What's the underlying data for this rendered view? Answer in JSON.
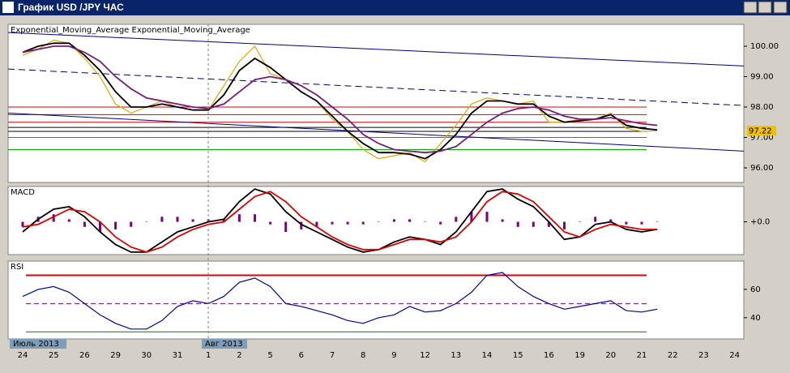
{
  "window": {
    "title": "График USD /JPY ЧАС"
  },
  "chart_data": [
    {
      "type": "line",
      "title": "Exponential_Moving_Average Exponential_Moving_Average",
      "categories": [
        "24",
        null,
        "25",
        null,
        "26",
        null,
        "29",
        null,
        "30",
        null,
        "31",
        null,
        "1",
        null,
        "2",
        null,
        "5",
        null,
        "6",
        null,
        "7",
        null,
        "8",
        null,
        "9",
        null,
        "12",
        null,
        "13",
        null,
        "14",
        null,
        "15",
        null,
        "16",
        null,
        "19",
        null,
        "20",
        null,
        "21",
        null,
        "22",
        null,
        "23",
        null,
        "24",
        null
      ],
      "month_labels": [
        "Июль 2013",
        "Авг 2013"
      ],
      "ylim": [
        95.52,
        100.72
      ],
      "yticks": [
        {
          "value": 96,
          "label": "96.00"
        },
        {
          "value": 97,
          "label": "97.00"
        },
        {
          "value": 98,
          "label": "98.00"
        },
        {
          "value": 99,
          "label": "99.00"
        },
        {
          "value": 100,
          "label": "100.00"
        }
      ],
      "last_price": {
        "value": 97.22,
        "label": "97.22"
      },
      "hlines": [
        {
          "value": 98.0,
          "color": "#e00000"
        },
        {
          "value": 97.75,
          "color": "#e00000"
        },
        {
          "value": 97.5,
          "color": "#e00000"
        },
        {
          "value": 97.33,
          "color": "#000000"
        },
        {
          "value": 97.2,
          "color": "#000000"
        },
        {
          "value": 97.0,
          "color": "#00b000"
        },
        {
          "value": 96.6,
          "color": "#00b000"
        }
      ],
      "trendlines": [
        {
          "color": "#000080",
          "dash": false,
          "values": [
            100.45,
            99.35
          ]
        },
        {
          "color": "#000080",
          "dash": true,
          "values": [
            99.25,
            98.05
          ]
        },
        {
          "color": "#000080",
          "dash": false,
          "values": [
            97.8,
            96.55
          ]
        }
      ],
      "series": [
        {
          "color": "#e0a800",
          "values": [
            99.7,
            99.9,
            100.2,
            100.1,
            99.6,
            99.0,
            98.1,
            97.8,
            98.0,
            98.2,
            98.0,
            97.9,
            97.9,
            98.7,
            99.5,
            100.0,
            99.1,
            98.9,
            98.5,
            98.2,
            97.6,
            97.2,
            96.6,
            96.3,
            96.4,
            96.5,
            96.2,
            96.8,
            97.4,
            98.1,
            98.3,
            98.2,
            98.1,
            98.2,
            97.5,
            97.5,
            97.6,
            97.6,
            97.8,
            97.3,
            97.2,
            97.22,
            null,
            null,
            null,
            null,
            null,
            null
          ]
        },
        {
          "color": "#000000",
          "values": [
            99.8,
            100.0,
            100.1,
            100.1,
            99.7,
            99.2,
            98.5,
            98.0,
            98.0,
            98.1,
            98.0,
            97.9,
            97.9,
            98.4,
            99.2,
            99.6,
            99.3,
            98.9,
            98.5,
            98.2,
            97.7,
            97.2,
            96.8,
            96.5,
            96.5,
            96.45,
            96.3,
            96.6,
            97.1,
            97.8,
            98.2,
            98.2,
            98.1,
            98.1,
            97.7,
            97.5,
            97.55,
            97.6,
            97.75,
            97.4,
            97.3,
            97.25,
            null,
            null,
            null,
            null,
            null,
            null
          ]
        },
        {
          "color": "#7a1a7a",
          "values": [
            99.8,
            99.9,
            100.0,
            100.0,
            99.8,
            99.5,
            99.0,
            98.6,
            98.3,
            98.2,
            98.1,
            98.0,
            97.95,
            98.1,
            98.5,
            98.9,
            99.0,
            98.9,
            98.7,
            98.4,
            98.0,
            97.6,
            97.1,
            96.8,
            96.6,
            96.55,
            96.5,
            96.55,
            96.7,
            97.1,
            97.5,
            97.8,
            97.95,
            98.0,
            97.9,
            97.7,
            97.6,
            97.6,
            97.65,
            97.55,
            97.45,
            97.4,
            null,
            null,
            null,
            null,
            null,
            null
          ]
        }
      ]
    },
    {
      "type": "line",
      "title": "MACD",
      "ylim": [
        -0.65,
        0.7
      ],
      "yticks": [
        {
          "value": 0,
          "label": "+0.0"
        }
      ],
      "histogram": {
        "color": "#800080",
        "values": [
          -0.1,
          0.1,
          0.15,
          0.05,
          -0.1,
          -0.2,
          -0.15,
          -0.1,
          0.0,
          0.1,
          0.1,
          0.05,
          0.05,
          0.05,
          0.15,
          0.15,
          -0.05,
          -0.2,
          -0.15,
          -0.1,
          -0.05,
          -0.05,
          -0.05,
          0.0,
          0.05,
          0.05,
          0.0,
          -0.05,
          0.1,
          0.2,
          0.2,
          0.05,
          -0.1,
          -0.1,
          -0.1,
          -0.15,
          0.0,
          0.1,
          0.05,
          -0.05,
          -0.05,
          0.0,
          null,
          null,
          null,
          null,
          null,
          null
        ]
      },
      "series": [
        {
          "color": "#000000",
          "values": [
            -0.2,
            0.05,
            0.25,
            0.3,
            0.1,
            -0.2,
            -0.45,
            -0.6,
            -0.6,
            -0.4,
            -0.2,
            -0.1,
            0.0,
            0.05,
            0.4,
            0.65,
            0.55,
            0.2,
            -0.05,
            -0.2,
            -0.35,
            -0.5,
            -0.6,
            -0.55,
            -0.4,
            -0.3,
            -0.35,
            -0.45,
            -0.2,
            0.2,
            0.6,
            0.65,
            0.45,
            0.3,
            0.0,
            -0.35,
            -0.3,
            -0.05,
            0.0,
            -0.15,
            -0.2,
            -0.15,
            null,
            null,
            null,
            null,
            null,
            null
          ]
        },
        {
          "color": "#e00000",
          "values": [
            -0.1,
            -0.05,
            0.1,
            0.25,
            0.2,
            0.0,
            -0.3,
            -0.5,
            -0.6,
            -0.5,
            -0.3,
            -0.15,
            -0.05,
            0.0,
            0.25,
            0.5,
            0.6,
            0.4,
            0.1,
            -0.1,
            -0.3,
            -0.45,
            -0.55,
            -0.55,
            -0.45,
            -0.35,
            -0.35,
            -0.4,
            -0.3,
            0.0,
            0.4,
            0.6,
            0.55,
            0.4,
            0.1,
            -0.2,
            -0.3,
            -0.15,
            -0.05,
            -0.1,
            -0.15,
            -0.15,
            null,
            null,
            null,
            null,
            null,
            null
          ]
        }
      ]
    },
    {
      "type": "line",
      "title": "RSI",
      "ylim": [
        25,
        80
      ],
      "yticks": [
        40,
        60
      ],
      "hlines": [
        {
          "value": 70,
          "color": "#e00000"
        },
        {
          "value": 50,
          "color": "#800080",
          "dash": true
        },
        {
          "value": 30,
          "color": "#008000"
        }
      ],
      "series": [
        {
          "color": "#0000b0",
          "values": [
            55,
            60,
            62,
            58,
            50,
            42,
            36,
            32,
            32,
            38,
            48,
            52,
            50,
            55,
            65,
            68,
            62,
            50,
            48,
            45,
            42,
            38,
            36,
            40,
            42,
            48,
            44,
            45,
            50,
            58,
            70,
            72,
            62,
            55,
            50,
            46,
            48,
            50,
            52,
            45,
            44,
            46,
            null,
            null,
            null,
            null,
            null,
            null
          ]
        }
      ]
    }
  ]
}
